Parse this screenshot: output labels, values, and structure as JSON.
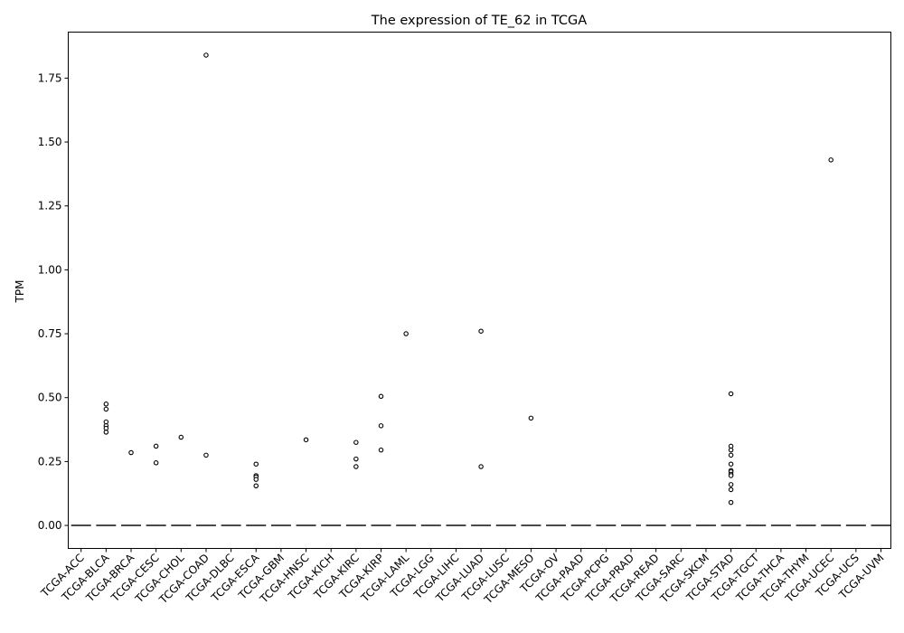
{
  "chart_data": {
    "type": "box",
    "title": "The expression of TE_62 in TCGA",
    "xlabel": "",
    "ylabel": "TPM",
    "ylim": [
      -0.09,
      1.93
    ],
    "yticks": [
      0.0,
      0.25,
      0.5,
      0.75,
      1.0,
      1.25,
      1.5,
      1.75
    ],
    "ytick_labels": [
      "0.00",
      "0.25",
      "0.50",
      "0.75",
      "1.00",
      "1.25",
      "1.50",
      "1.75"
    ],
    "grid": false,
    "categories": [
      "TCGA-ACC",
      "TCGA-BLCA",
      "TCGA-BRCA",
      "TCGA-CESC",
      "TCGA-CHOL",
      "TCGA-COAD",
      "TCGA-DLBC",
      "TCGA-ESCA",
      "TCGA-GBM",
      "TCGA-HNSC",
      "TCGA-KICH",
      "TCGA-KIRC",
      "TCGA-KIRP",
      "TCGA-LAML",
      "TCGA-LGG",
      "TCGA-LIHC",
      "TCGA-LUAD",
      "TCGA-LUSC",
      "TCGA-MESO",
      "TCGA-OV",
      "TCGA-PAAD",
      "TCGA-PCPG",
      "TCGA-PRAD",
      "TCGA-READ",
      "TCGA-SARC",
      "TCGA-SKCM",
      "TCGA-STAD",
      "TCGA-TGCT",
      "TCGA-THCA",
      "TCGA-THYM",
      "TCGA-UCEC",
      "TCGA-UCS",
      "TCGA-UVM"
    ],
    "median": 0,
    "outliers": {
      "TCGA-BLCA": [
        0.475,
        0.455,
        0.405,
        0.39,
        0.38,
        0.365
      ],
      "TCGA-BRCA": [
        0.285
      ],
      "TCGA-CESC": [
        0.31,
        0.245
      ],
      "TCGA-CHOL": [
        0.345
      ],
      "TCGA-COAD": [
        1.84,
        0.275
      ],
      "TCGA-ESCA": [
        0.24,
        0.195,
        0.19,
        0.18,
        0.155
      ],
      "TCGA-HNSC": [
        0.335
      ],
      "TCGA-KIRC": [
        0.325,
        0.26,
        0.23
      ],
      "TCGA-KIRP": [
        0.505,
        0.39,
        0.295
      ],
      "TCGA-LAML": [
        0.75
      ],
      "TCGA-LUAD": [
        0.76,
        0.23
      ],
      "TCGA-MESO": [
        0.42
      ],
      "TCGA-STAD": [
        0.515,
        0.31,
        0.295,
        0.275,
        0.24,
        0.215,
        0.21,
        0.2,
        0.195,
        0.16,
        0.14,
        0.09
      ],
      "TCGA-UCEC": [
        1.43
      ]
    },
    "colors": {
      "median_line": "#4a4a4a",
      "outlier_edge": "#000000",
      "outlier_fill": "#ffffff",
      "axis": "#000000"
    }
  }
}
